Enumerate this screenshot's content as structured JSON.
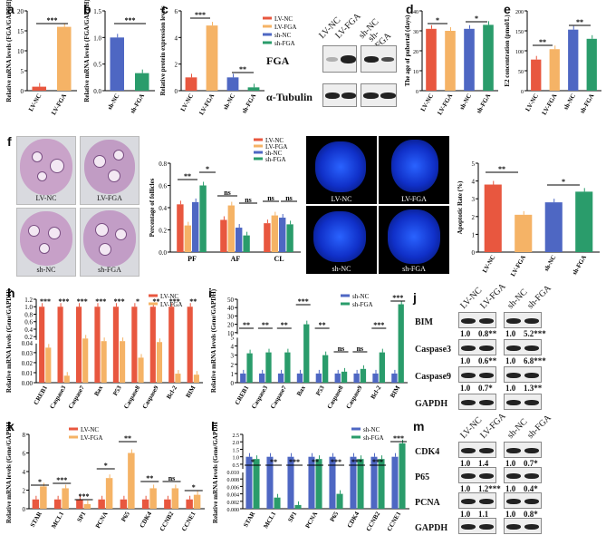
{
  "panels": {
    "a": {
      "letter": "a",
      "chart_data": {
        "type": "bar",
        "ylabel": "Relative mRNA levels (FGA/GAPDH)",
        "categories": [
          "LV-NC",
          "LV-FGA"
        ],
        "values": [
          1,
          16
        ],
        "ylim": [
          0,
          20
        ],
        "yticks": [
          "0",
          "5",
          "10",
          "15",
          "20"
        ],
        "colors": [
          "#e8573f",
          "#f5b366"
        ],
        "sig": [
          "***"
        ]
      }
    },
    "b": {
      "letter": "b",
      "chart_data": {
        "type": "bar",
        "ylabel": "Relative mRNA levels (FGA/GAPDH)",
        "categories": [
          "sh-NC",
          "sh-FGA"
        ],
        "values": [
          1,
          0.33
        ],
        "ylim": [
          0,
          1.5
        ],
        "yticks": [
          "0.0",
          "0.5",
          "1.0",
          "1.5"
        ],
        "colors": [
          "#4e67c3",
          "#2a9c6b"
        ],
        "sig": [
          "***"
        ]
      }
    },
    "c": {
      "letter": "c",
      "chart_data": {
        "type": "bar",
        "ylabel": "Relative protein expression levels",
        "categories": [
          "LV-NC",
          "LV-FGA",
          "sh-NC",
          "sh-FGA"
        ],
        "values": [
          1,
          4.9,
          1.0,
          0.25
        ],
        "ylim": [
          0,
          6
        ],
        "yticks": [
          "0",
          "2",
          "4",
          "6"
        ],
        "colors": [
          "#e8573f",
          "#f5b366",
          "#4e67c3",
          "#2a9c6b"
        ],
        "legend": [
          "LV-NC",
          "LV-FGA",
          "sh-NC",
          "sh-FGA"
        ],
        "sig": [
          "***",
          "**"
        ]
      },
      "blot": {
        "lanes": [
          "LV-NC",
          "LV-FGA",
          "sh-NC",
          "sh-FGA"
        ],
        "rows": [
          "FGA",
          "α-Tubulin"
        ]
      }
    },
    "d": {
      "letter": "d",
      "chart_data": {
        "type": "bar",
        "ylabel": "The age of pubertal (days)",
        "categories": [
          "LV-NC",
          "LV-FGA",
          "sh-NC",
          "sh-FGA"
        ],
        "values": [
          31,
          30,
          31,
          33
        ],
        "ylim": [
          0,
          40
        ],
        "yticks": [
          "0",
          "10",
          "20",
          "30",
          "40"
        ],
        "colors": [
          "#e8573f",
          "#f5b366",
          "#4e67c3",
          "#2a9c6b"
        ],
        "sig": [
          "*",
          "*"
        ]
      }
    },
    "e": {
      "letter": "e",
      "chart_data": {
        "type": "bar",
        "ylabel": "E2 concentration (pmol/L)",
        "categories": [
          "LV-NC",
          "LV-FGA",
          "sh-NC",
          "sh-FGA"
        ],
        "values": [
          78,
          104,
          153,
          130
        ],
        "ylim": [
          0,
          200
        ],
        "yticks": [
          "0",
          "50",
          "100",
          "150",
          "200"
        ],
        "colors": [
          "#e8573f",
          "#f5b366",
          "#4e67c3",
          "#2a9c6b"
        ],
        "sig": [
          "**",
          "**"
        ]
      }
    },
    "f": {
      "letter": "f",
      "images": [
        "LV-NC",
        "LV-FGA",
        "sh-NC",
        "sh-FGA"
      ],
      "chart_data": {
        "type": "bar",
        "ylabel": "Percentage of follicles",
        "categories": [
          "PF",
          "AF",
          "CL"
        ],
        "series": [
          {
            "name": "LV-NC",
            "values": [
              0.43,
              0.29,
              0.26
            ]
          },
          {
            "name": "LV-FGA",
            "values": [
              0.24,
              0.42,
              0.33
            ]
          },
          {
            "name": "sh-NC",
            "values": [
              0.45,
              0.22,
              0.31
            ]
          },
          {
            "name": "sh-FGA",
            "values": [
              0.6,
              0.15,
              0.25
            ]
          }
        ],
        "ylim": [
          0,
          0.8
        ],
        "yticks": [
          "0.0",
          "0.2",
          "0.4",
          "0.6",
          "0.8"
        ],
        "colors": [
          "#e8573f",
          "#f5b366",
          "#4e67c3",
          "#2a9c6b"
        ],
        "sig": [
          "**",
          "*",
          "ns",
          "ns",
          "ns",
          "ns"
        ]
      }
    },
    "g": {
      "letter": "g",
      "images": [
        "LV-NC",
        "LV-FGA",
        "sh-NC",
        "sh-FGA"
      ],
      "chart_data": {
        "type": "bar",
        "ylabel": "Apoptotic Rate (%)",
        "categories": [
          "LV-NC",
          "LV-FGA",
          "sh-NC",
          "sh-FGA"
        ],
        "values": [
          3.8,
          2.1,
          2.8,
          3.4
        ],
        "ylim": [
          0,
          5
        ],
        "yticks": [
          "0",
          "1",
          "2",
          "3",
          "4",
          "5"
        ],
        "colors": [
          "#e8573f",
          "#f5b366",
          "#4e67c3",
          "#2a9c6b"
        ],
        "sig": [
          "**",
          "*"
        ]
      }
    },
    "h": {
      "letter": "h",
      "chart_data": {
        "type": "bar",
        "ylabel": "Relative mRNA levels (Gene/GAPDH)",
        "categories": [
          "CREB1",
          "Caspase3",
          "Caspase7",
          "Bax",
          "P53",
          "Caspase8",
          "Caspase9",
          "Bcl-2",
          "BIM"
        ],
        "series": [
          {
            "name": "LV-NC",
            "values": [
              1,
              1,
              1,
              1,
              1,
              1,
              1,
              1,
              1
            ]
          },
          {
            "name": "LV-FGA",
            "values": [
              0.035,
              0.007,
              0.15,
              0.08,
              0.08,
              0.025,
              0.055,
              0.009,
              0.008
            ]
          }
        ],
        "yticks": [
          "0.00",
          "0.01",
          "0.02",
          "0.03",
          "0.04",
          "0.2",
          "0.4",
          "0.6",
          "0.8",
          "1.0",
          "1.2"
        ],
        "colors": [
          "#e8573f",
          "#f5b366"
        ],
        "sig": [
          "***",
          "***",
          "***",
          "***",
          "***",
          "*",
          "**",
          "***",
          "**"
        ]
      }
    },
    "i": {
      "letter": "i",
      "chart_data": {
        "type": "bar",
        "ylabel": "Relative mRNA levels (Gene/GAPDH)",
        "categories": [
          "CREB1",
          "Caspase3",
          "Caspase7",
          "Bax",
          "P53",
          "Caspase8",
          "Caspase9",
          "Bcl-2",
          "BIM"
        ],
        "series": [
          {
            "name": "sh-NC",
            "values": [
              1,
              1,
              1,
              1,
              1,
              1,
              1,
              1,
              1
            ]
          },
          {
            "name": "sh-FGA",
            "values": [
              3.2,
              3.3,
              3.3,
              20,
              3,
              1.2,
              1.5,
              3.3,
              44
            ]
          }
        ],
        "yticks": [
          "0",
          "1",
          "2",
          "3",
          "4",
          "5",
          "10",
          "20",
          "30",
          "40",
          "50"
        ],
        "colors": [
          "#4e67c3",
          "#2a9c6b"
        ],
        "sig": [
          "**",
          "**",
          "**",
          "***",
          "**",
          "ns",
          "ns",
          "***",
          "***"
        ]
      }
    },
    "j": {
      "letter": "j",
      "lanes": [
        "LV-NC",
        "LV-FGA",
        "sh-NC",
        "sh-FGA"
      ],
      "rows": [
        {
          "name": "BIM",
          "vals": [
            "1.0",
            "0.8**",
            "1.0",
            "5.2***"
          ]
        },
        {
          "name": "Caspase3",
          "vals": [
            "1.0",
            "0.6**",
            "1.0",
            "6.8***"
          ]
        },
        {
          "name": "Caspase9",
          "vals": [
            "1.0",
            "0.7*",
            "1.0",
            "1.3**"
          ]
        },
        {
          "name": "GAPDH",
          "vals": []
        }
      ]
    },
    "k": {
      "letter": "k",
      "chart_data": {
        "type": "bar",
        "ylabel": "Relative mRNA levels (Gene/GAPDH)",
        "categories": [
          "STAR",
          "MCL1",
          "SP1",
          "PCNA",
          "P65",
          "CDK4",
          "CCNB2",
          "CCNE1"
        ],
        "series": [
          {
            "name": "LV-NC",
            "values": [
              1,
              1,
              1,
              1,
              1,
              1,
              1,
              1
            ]
          },
          {
            "name": "LV-FGA",
            "values": [
              2.4,
              2.2,
              0.5,
              3.3,
              6,
              2.2,
              2.2,
              1.5
            ]
          }
        ],
        "ylim": [
          0,
          8
        ],
        "yticks": [
          "0",
          "2",
          "4",
          "6",
          "8"
        ],
        "colors": [
          "#e8573f",
          "#f5b366"
        ],
        "sig": [
          "*",
          "***",
          "***",
          "*",
          "**",
          "**",
          "ns",
          "*"
        ]
      }
    },
    "l": {
      "letter": "l",
      "chart_data": {
        "type": "bar",
        "ylabel": "Relative mRNA levels (Gene/GAPDH)",
        "categories": [
          "STAR",
          "MCL1",
          "SP1",
          "PCNA",
          "P65",
          "CDK4",
          "CCNB2",
          "CCNE1"
        ],
        "series": [
          {
            "name": "sh-NC",
            "values": [
              1,
              1,
              1,
              1,
              1,
              1,
              1,
              1
            ]
          },
          {
            "name": "sh-FGA",
            "values": [
              0.85,
              0.003,
              0.001,
              0.85,
              0.004,
              0.85,
              0.85,
              1.9
            ]
          }
        ],
        "yticks": [
          "0.000",
          "0.002",
          "0.004",
          "0.006",
          "0.008",
          "0.010",
          "0.5",
          "1.0",
          "1.5",
          "2.0",
          "2.5"
        ],
        "colors": [
          "#4e67c3",
          "#2a9c6b"
        ],
        "sig": [
          "*",
          "**",
          "***",
          "**",
          "***",
          "***",
          "***",
          "***"
        ]
      }
    },
    "m": {
      "letter": "m",
      "lanes": [
        "LV-NC",
        "LV-FGA",
        "sh-NC",
        "sh-FGA"
      ],
      "rows": [
        {
          "name": "CDK4",
          "vals": [
            "1.0",
            "1.4",
            "1.0",
            "0.7*"
          ]
        },
        {
          "name": "P65",
          "vals": [
            "1.0",
            "1.2***",
            "1.0",
            "0.4*"
          ]
        },
        {
          "name": "PCNA",
          "vals": [
            "1.0",
            "1.1",
            "1.0",
            "0.8*"
          ]
        },
        {
          "name": "GAPDH",
          "vals": []
        }
      ]
    }
  }
}
